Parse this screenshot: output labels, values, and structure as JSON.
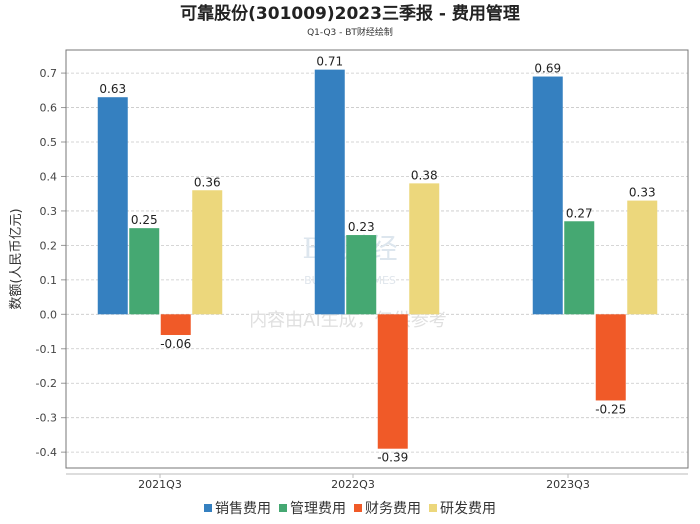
{
  "chart_data": {
    "type": "bar",
    "title": "可靠股份(301009)2023三季报 - 费用管理",
    "subtitle": "Q1-Q3 - BT财经绘制",
    "xlabel": "",
    "ylabel": "数额(人民币亿元)",
    "ylim": [
      -0.446,
      0.767
    ],
    "yticks": [
      -0.4,
      -0.3,
      -0.2,
      -0.1,
      0.0,
      0.1,
      0.2,
      0.3,
      0.4,
      0.5,
      0.6,
      0.7
    ],
    "grid": true,
    "legend_position": "bottom",
    "categories": [
      "2021Q3",
      "2022Q3",
      "2023Q3"
    ],
    "series": [
      {
        "name": "销售费用",
        "color": "#3580c0",
        "values": [
          0.63,
          0.71,
          0.69
        ]
      },
      {
        "name": "管理费用",
        "color": "#45a872",
        "values": [
          0.25,
          0.23,
          0.27
        ]
      },
      {
        "name": "财务费用",
        "color": "#f05a28",
        "values": [
          -0.06,
          -0.39,
          -0.25
        ]
      },
      {
        "name": "研发费用",
        "color": "#ecd77c",
        "values": [
          0.36,
          0.38,
          0.33
        ]
      }
    ]
  },
  "watermark": {
    "logo": "BT财经",
    "logo_sub": "BUSINESS TIMES",
    "notice": "内容由AI生成，仅供参考"
  }
}
